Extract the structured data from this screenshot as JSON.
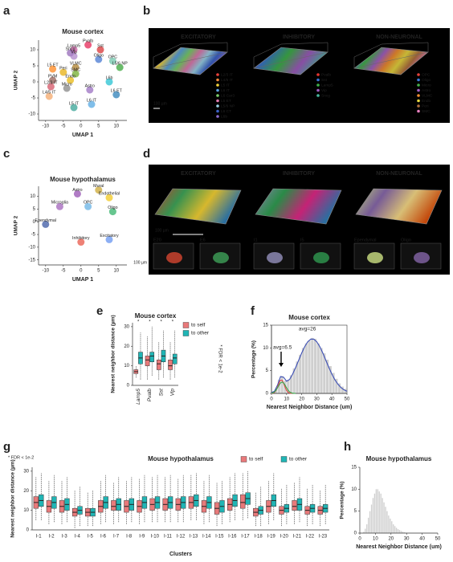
{
  "panel_letters": [
    "a",
    "b",
    "c",
    "d",
    "e",
    "f",
    "g",
    "h"
  ],
  "renders": [
    {
      "views": [
        {
          "title": "EXCITATORY",
          "legend": [
            {
              "label": "L2/3 IT",
              "color": "#e8403a"
            },
            {
              "label": "L4/5 IT",
              "color": "#f08a3c"
            },
            {
              "label": "L5 IT",
              "color": "#f3d23a"
            },
            {
              "label": "L6 IT",
              "color": "#5aa0e0"
            },
            {
              "label": "L6 Car3",
              "color": "#7ccf6a"
            },
            {
              "label": "L5 ET",
              "color": "#e07ab0"
            },
            {
              "label": "L5/6 NP",
              "color": "#9bd3e8"
            },
            {
              "label": "L6 CT",
              "color": "#3b62c8"
            },
            {
              "label": "L6b",
              "color": "#8c6bd0"
            }
          ]
        },
        {
          "title": "INHIBITORY",
          "legend": [
            {
              "label": "Pvalb",
              "color": "#e5342f"
            },
            {
              "label": "Sst",
              "color": "#3a72d0"
            },
            {
              "label": "Lamp5",
              "color": "#3fb04a"
            },
            {
              "label": "Vip",
              "color": "#a05cc0"
            },
            {
              "label": "Sncg",
              "color": "#47b8a0"
            }
          ]
        },
        {
          "title": "NON-NEURONAL",
          "legend": [
            {
              "label": "OPC",
              "color": "#e3403a"
            },
            {
              "label": "Oligo",
              "color": "#3b7ad8"
            },
            {
              "label": "Micro",
              "color": "#46b04c"
            },
            {
              "label": "Astro",
              "color": "#a460c4"
            },
            {
              "label": "VLMC",
              "color": "#f08c30"
            },
            {
              "label": "Endo",
              "color": "#e8d840"
            },
            {
              "label": "Peri",
              "color": "#b07040"
            },
            {
              "label": "SMC",
              "color": "#e880c0"
            }
          ]
        }
      ],
      "scale_bar": "100 µm"
    },
    {
      "views": [
        {
          "title": "EXCITATORY",
          "insets": [
            "E20",
            "E6"
          ]
        },
        {
          "title": "INHIBITORY",
          "insets": [
            "I1",
            "I5"
          ]
        },
        {
          "title": "NON-NEURONAL",
          "insets": [
            "Ependymal",
            "Oligo"
          ]
        }
      ],
      "scale_bars": [
        "100 µm",
        "100 µm"
      ]
    }
  ],
  "chart_data": [
    {
      "type": "umap",
      "title": "Mouse cortex",
      "xlabel": "UMAP 1",
      "ylabel": "UMAP 2",
      "xlim": [
        -12,
        13
      ],
      "ylim": [
        -12,
        13
      ],
      "xticks": [
        -10,
        -5,
        0,
        5,
        10
      ],
      "yticks": [
        -10,
        -5,
        0,
        5,
        10
      ],
      "clusters": [
        "Pvalb",
        "Sst",
        "Lamp5",
        "Sncg",
        "Vip",
        "Oligo",
        "OPC",
        "L5/6 NP",
        "L5 ET",
        "VLMC",
        "Peri",
        "SMC",
        "PVM",
        "Endo",
        "L6b",
        "L2/3 IT",
        "Micro",
        "Astro",
        "L4/5 IT",
        "L6 ET",
        "L6 IT",
        "L5 IT"
      ],
      "x": [
        2,
        5.5,
        -2,
        -3,
        -2,
        5,
        9,
        11,
        -8,
        -1.5,
        -5,
        -1.5,
        -8,
        -3,
        8,
        -8.5,
        -4,
        2.5,
        -9,
        10,
        3,
        -2
      ],
      "y": [
        11.5,
        10,
        10,
        9,
        8,
        7,
        6.5,
        4.5,
        4,
        4.5,
        3,
        2.5,
        0.5,
        0.5,
        0,
        -1.5,
        -2,
        -2.5,
        -4.5,
        -4,
        -7,
        -8
      ],
      "colors": [
        "#e41a4c",
        "#d62728",
        "#c44e9a",
        "#8e5fb4",
        "#ab7fc8",
        "#3b6fcf",
        "#66c2a5",
        "#2ca02c",
        "#ff7f0e",
        "#a6761d",
        "#e6ab02",
        "#66a61e",
        "#8c564b",
        "#e7b300",
        "#17becf",
        "#d1495b",
        "#7f7f7f",
        "#9467bd",
        "#f4a261",
        "#1f77b4",
        "#4aa3df",
        "#2a9d8f"
      ]
    },
    {
      "type": "umap",
      "title": "Mouse hypothalamus",
      "xlabel": "UMAP 1",
      "ylabel": "UMAP 2",
      "xlim": [
        -12,
        13
      ],
      "ylim": [
        -17,
        14
      ],
      "xticks": [
        -10,
        -5,
        0,
        5,
        10
      ],
      "yticks": [
        -15,
        -10,
        -5,
        0,
        5,
        10
      ],
      "clusters": [
        "Mural",
        "Astro",
        "Endothelial",
        "Microglia",
        "OPC",
        "Oligo",
        "Ependymal",
        "Excitatory",
        "Inhibitory"
      ],
      "x": [
        5,
        -1,
        8,
        -6,
        2,
        9,
        -10,
        8,
        0
      ],
      "y": [
        12.5,
        11,
        9.5,
        6,
        6,
        4,
        -1,
        -7,
        -8
      ],
      "colors": [
        "#c9a227",
        "#8e44ad",
        "#f1c40f",
        "#9b59b6",
        "#5dade2",
        "#27ae60",
        "#2e4d9c",
        "#5b8def",
        "#e74c3c"
      ]
    },
    {
      "type": "box",
      "title": "Mouse cortex",
      "ylabel": "Nearest neighbor distance (µm)",
      "categories": [
        "Lamp5",
        "Pvalb",
        "Sst",
        "Vip"
      ],
      "xtick_rotation": 90,
      "ylim": [
        0,
        32
      ],
      "yticks": [
        0,
        10,
        20,
        30
      ],
      "legend": "right",
      "note": "* FDR < 1e-2",
      "significance": [
        "*",
        "*",
        "*",
        "*"
      ],
      "series": [
        {
          "name": "to self",
          "color": "#e8797a",
          "values": [
            [
              4,
              6,
              7,
              8,
              10
            ],
            [
              3,
              10,
              13,
              15,
              25
            ],
            [
              3,
              8,
              11,
              13,
              22
            ],
            [
              3,
              8,
              10,
              13,
              22
            ]
          ]
        },
        {
          "name": "to other",
          "color": "#20b5b5",
          "values": [
            [
              3,
              11,
              14,
              17,
              27
            ],
            [
              5,
              12,
              15,
              17,
              30
            ],
            [
              4,
              12,
              15,
              18,
              28
            ],
            [
              4,
              11,
              14,
              16,
              28
            ]
          ]
        }
      ]
    },
    {
      "type": "histogram",
      "title": "Mouse cortex",
      "xlabel": "Nearest Neighbor Distance (um)",
      "ylabel": "Percentage (%)",
      "color": "#cfcfcf",
      "xlim": [
        0,
        50
      ],
      "ylim": [
        0,
        15
      ],
      "xticks": [
        0,
        10,
        20,
        30,
        40,
        50
      ],
      "yticks": [
        0,
        5,
        10,
        15
      ],
      "bins": [
        0,
        2,
        4,
        6,
        8,
        10,
        12,
        14,
        16,
        18,
        20,
        22,
        24,
        26,
        28,
        30,
        32,
        34,
        36,
        38,
        40,
        42,
        44,
        46,
        48,
        50
      ],
      "counts": [
        0.4,
        1.0,
        3.0,
        3.8,
        2.8,
        3.0,
        4.0,
        5.5,
        7.0,
        8.5,
        10.0,
        11.0,
        11.6,
        12.2,
        12.0,
        11.0,
        10.0,
        8.8,
        7.4,
        6.0,
        4.5,
        3.2,
        2.2,
        1.5,
        1.0
      ],
      "annotations": [
        "avg=6.5",
        "avg=26"
      ],
      "lines": [
        {
          "color": "#3d4fb5",
          "x": [
            0,
            2,
            4,
            6,
            8,
            10,
            12,
            14,
            16,
            18,
            20,
            22,
            24,
            26,
            28,
            30,
            32,
            34,
            36,
            38,
            40,
            42,
            44,
            46,
            48,
            50
          ],
          "y": [
            0.15,
            0.49,
            1.83,
            3.7,
            3.56,
            2.67,
            3.06,
            4.24,
            5.69,
            7.28,
            8.87,
            10.28,
            11.35,
            11.93,
            11.93,
            11.35,
            10.28,
            8.87,
            7.28,
            5.69,
            4.24,
            2.99,
            2.02,
            1.29,
            0.79,
            0.46
          ]
        },
        {
          "color": "#e04848",
          "x": [
            0,
            1,
            2,
            3,
            4,
            5,
            6,
            7,
            8,
            9,
            10,
            11,
            12,
            13,
            14
          ],
          "y": [
            0.02,
            0.07,
            0.24,
            0.65,
            1.37,
            2.27,
            2.91,
            2.91,
            2.27,
            1.37,
            0.65,
            0.24,
            0.07,
            0.02,
            0
          ]
        },
        {
          "color": "#3aa64a",
          "x": [
            0,
            1,
            2,
            3,
            4,
            5,
            6,
            7,
            8,
            9,
            10,
            11,
            12,
            13,
            14,
            15,
            16
          ],
          "y": [
            0.05,
            0.14,
            0.34,
            0.7,
            1.22,
            1.82,
            2.31,
            2.5,
            2.31,
            1.82,
            1.22,
            0.7,
            0.34,
            0.14,
            0.05,
            0.02,
            0.01
          ]
        }
      ]
    },
    {
      "type": "box",
      "title": "Mouse hypothalamus",
      "xlabel": "Clusters",
      "ylabel": "Nearest neighbor distance (µm)",
      "categories": [
        "I-1",
        "I-2",
        "I-3",
        "I-4",
        "I-5",
        "I-6",
        "I-7",
        "I-8",
        "I-9",
        "I-10",
        "I-11",
        "I-12",
        "I-13",
        "I-14",
        "I-15",
        "I-16",
        "I-17",
        "I-18",
        "I-19",
        "I-20",
        "I-21",
        "I-22",
        "I-23"
      ],
      "ylim": [
        0,
        32
      ],
      "yticks": [
        0,
        10,
        20,
        30
      ],
      "legend": "top",
      "note": "* FDR < 1e-2",
      "series": [
        {
          "name": "to self",
          "color": "#e8797a",
          "values": [
            [
              5,
              11,
              14,
              17,
              27
            ],
            [
              3,
              9,
              12,
              15,
              25
            ],
            [
              3,
              9,
              12,
              15,
              25
            ],
            [
              1,
              7,
              9,
              11,
              20
            ],
            [
              2,
              7,
              9,
              11,
              19
            ],
            [
              3,
              9,
              12,
              15,
              25
            ],
            [
              3,
              10,
              12,
              15,
              24
            ],
            [
              3,
              9,
              12,
              15,
              25
            ],
            [
              3,
              9,
              12,
              15,
              26
            ],
            [
              4,
              10,
              13,
              16,
              27
            ],
            [
              4,
              10,
              13,
              16,
              27
            ],
            [
              4,
              10,
              13,
              16,
              26
            ],
            [
              5,
              11,
              14,
              17,
              28
            ],
            [
              3,
              9,
              12,
              15,
              25
            ],
            [
              2,
              8,
              11,
              14,
              24
            ],
            [
              4,
              10,
              13,
              16,
              27
            ],
            [
              5,
              11,
              14,
              18,
              29
            ],
            [
              2,
              7,
              9,
              11,
              19
            ],
            [
              3,
              9,
              12,
              15,
              25
            ],
            [
              2,
              8,
              10,
              12,
              21
            ],
            [
              3,
              10,
              12,
              15,
              24
            ],
            [
              2,
              8,
              10,
              12,
              21
            ],
            [
              2,
              8,
              10,
              12,
              20
            ]
          ]
        },
        {
          "name": "to other",
          "color": "#20b5b5",
          "values": [
            [
              5,
              12,
              15,
              18,
              29
            ],
            [
              4,
              11,
              14,
              17,
              28
            ],
            [
              4,
              10,
              13,
              16,
              27
            ],
            [
              2,
              8,
              10,
              12,
              22
            ],
            [
              2,
              7,
              9,
              11,
              20
            ],
            [
              4,
              11,
              14,
              17,
              28
            ],
            [
              4,
              10,
              13,
              16,
              27
            ],
            [
              4,
              10,
              13,
              16,
              27
            ],
            [
              4,
              11,
              14,
              17,
              28
            ],
            [
              4,
              11,
              14,
              17,
              28
            ],
            [
              4,
              11,
              14,
              17,
              28
            ],
            [
              4,
              11,
              14,
              17,
              28
            ],
            [
              5,
              12,
              15,
              18,
              29
            ],
            [
              4,
              11,
              14,
              17,
              28
            ],
            [
              3,
              9,
              12,
              15,
              25
            ],
            [
              5,
              12,
              15,
              18,
              29
            ],
            [
              6,
              13,
              16,
              19,
              30
            ],
            [
              2,
              8,
              10,
              12,
              22
            ],
            [
              5,
              12,
              15,
              18,
              29
            ],
            [
              3,
              9,
              11,
              13,
              23
            ],
            [
              4,
              10,
              13,
              16,
              27
            ],
            [
              3,
              9,
              11,
              13,
              23
            ],
            [
              3,
              9,
              11,
              13,
              23
            ]
          ]
        }
      ]
    },
    {
      "type": "histogram",
      "title": "Mouse hypothalamus",
      "xlabel": "Nearest Neighbor Distance (um)",
      "ylabel": "Percentage (%)",
      "color": "#cfcfcf",
      "xlim": [
        0,
        50
      ],
      "ylim": [
        0,
        15
      ],
      "xticks": [
        0,
        10,
        20,
        30,
        40,
        50
      ],
      "yticks": [
        0,
        5,
        10,
        15
      ],
      "bins": [
        0,
        1,
        2,
        3,
        4,
        5,
        6,
        7,
        8,
        9,
        10,
        11,
        12,
        13,
        14,
        15,
        16,
        17,
        18,
        19,
        20,
        21,
        22,
        23,
        24,
        25,
        26,
        27,
        28,
        29,
        30
      ],
      "counts": [
        0,
        0,
        0.3,
        1,
        2,
        3.5,
        5,
        6.5,
        8,
        9,
        10,
        10,
        9.5,
        9,
        8,
        7,
        6,
        5,
        4,
        3.3,
        2.7,
        2,
        1.6,
        1.2,
        0.9,
        0.7,
        0.5,
        0.3,
        0.2,
        0.1
      ]
    }
  ]
}
